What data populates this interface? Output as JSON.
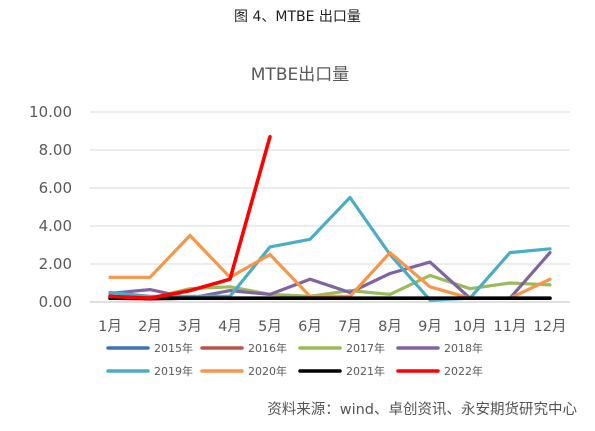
{
  "figure_caption": "图 4、MTBE 出口量",
  "source": "资料来源：wind、卓创资讯、永安期货研究中心",
  "chart_data": {
    "type": "line",
    "title": "MTBE出口量",
    "xlabel": "",
    "ylabel": "",
    "categories": [
      "1月",
      "2月",
      "3月",
      "4月",
      "5月",
      "6月",
      "7月",
      "8月",
      "9月",
      "10月",
      "11月",
      "12月"
    ],
    "ylim": [
      0,
      10
    ],
    "yticks": [
      "0.00",
      "2.00",
      "4.00",
      "6.00",
      "8.00",
      "10.00"
    ],
    "grid": "horizontal",
    "legend_position": "bottom",
    "series": [
      {
        "name": "2015年",
        "color": "#3e76b3",
        "values": [
          0.2,
          0.15,
          0.2,
          0.2,
          0.2,
          0.2,
          0.2,
          0.2,
          0.2,
          0.2,
          0.2,
          0.2
        ]
      },
      {
        "name": "2016年",
        "color": "#c0504d",
        "values": [
          0.2,
          0.15,
          0.2,
          0.2,
          0.2,
          0.2,
          0.2,
          0.2,
          0.2,
          0.2,
          0.2,
          0.2
        ]
      },
      {
        "name": "2017年",
        "color": "#9bbb59",
        "values": [
          0.3,
          0.2,
          0.7,
          0.8,
          0.4,
          0.3,
          0.6,
          0.4,
          1.4,
          0.7,
          1.0,
          0.9
        ]
      },
      {
        "name": "2018年",
        "color": "#8064a2",
        "values": [
          0.45,
          0.65,
          0.2,
          0.6,
          0.4,
          1.2,
          0.5,
          1.5,
          2.1,
          0.2,
          0.2,
          2.6
        ]
      },
      {
        "name": "2019年",
        "color": "#4bacc6",
        "values": [
          0.5,
          0.3,
          0.3,
          0.3,
          2.9,
          3.3,
          5.5,
          2.5,
          0.1,
          0.2,
          2.6,
          2.8
        ]
      },
      {
        "name": "2020年",
        "color": "#f79646",
        "values": [
          1.3,
          1.3,
          3.5,
          1.3,
          2.5,
          0.3,
          0.3,
          2.6,
          0.8,
          0.2,
          0.2,
          1.2
        ]
      },
      {
        "name": "2021年",
        "color": "#000000",
        "values": [
          0.2,
          0.2,
          0.2,
          0.2,
          0.2,
          0.2,
          0.2,
          0.2,
          0.2,
          0.2,
          0.2,
          0.2
        ]
      },
      {
        "name": "2022年",
        "color": "#ff0000",
        "values": [
          0.3,
          0.2,
          0.6,
          1.2,
          8.7,
          null,
          null,
          null,
          null,
          null,
          null,
          null
        ]
      }
    ]
  }
}
